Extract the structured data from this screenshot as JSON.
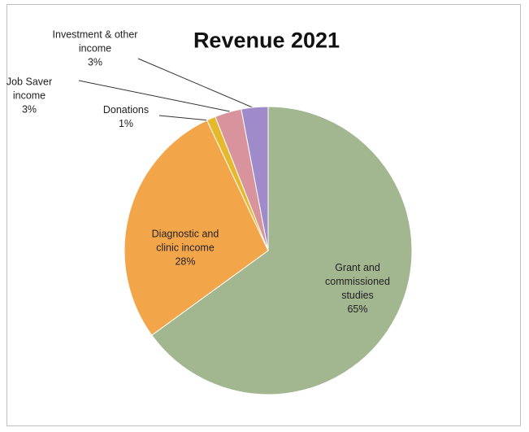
{
  "chart_data": {
    "type": "pie",
    "title": "Revenue 2021",
    "categories": [
      "Grant and commissioned studies",
      "Diagnostic and clinic income",
      "Donations",
      "Job Saver income",
      "Investment & other income"
    ],
    "values": [
      65,
      28,
      1,
      3,
      3
    ],
    "value_labels": [
      "65%",
      "28%",
      "1%",
      "3%",
      "3%"
    ],
    "colors": [
      "#a2b68f",
      "#f3a54a",
      "#e6b92d",
      "#d8939c",
      "#9f8bc9"
    ]
  }
}
